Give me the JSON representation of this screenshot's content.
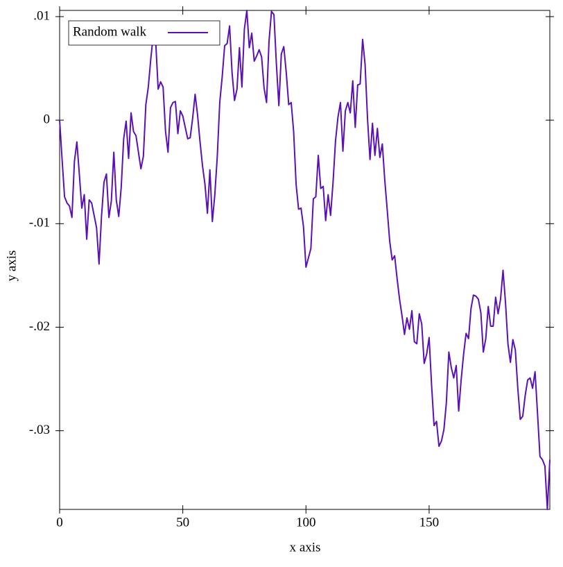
{
  "chart_data": {
    "type": "line",
    "x_label": "x axis",
    "y_label": "y axis",
    "xlim": [
      0,
      199
    ],
    "ylim": [
      -0.0376,
      0.0106
    ],
    "xticks": [
      0,
      50,
      100,
      150
    ],
    "yticks": [
      {
        "value": 0.01,
        "label": ".01"
      },
      0,
      {
        "value": -0.01,
        "label": "-.01"
      },
      {
        "value": -0.02,
        "label": "-.02"
      },
      {
        "value": -0.03,
        "label": "-.03"
      }
    ],
    "legend": "top-left",
    "x": [
      0,
      1,
      2,
      3,
      4,
      5,
      6,
      7,
      8,
      9,
      10,
      11,
      12,
      13,
      14,
      15,
      16,
      17,
      18,
      19,
      20,
      21,
      22,
      23,
      24,
      25,
      26,
      27,
      28,
      29,
      30,
      31,
      32,
      33,
      34,
      35,
      36,
      37,
      38,
      39,
      40,
      41,
      42,
      43,
      44,
      45,
      46,
      47,
      48,
      49,
      50,
      51,
      52,
      53,
      54,
      55,
      56,
      57,
      58,
      59,
      60,
      61,
      62,
      63,
      64,
      65,
      66,
      67,
      68,
      69,
      70,
      71,
      72,
      73,
      74,
      75,
      76,
      77,
      78,
      79,
      80,
      81,
      82,
      83,
      84,
      85,
      86,
      87,
      88,
      89,
      90,
      91,
      92,
      93,
      94,
      95,
      96,
      97,
      98,
      99,
      100,
      101,
      102,
      103,
      104,
      105,
      106,
      107,
      108,
      109,
      110,
      111,
      112,
      113,
      114,
      115,
      116,
      117,
      118,
      119,
      120,
      121,
      122,
      123,
      124,
      125,
      126,
      127,
      128,
      129,
      130,
      131,
      132,
      133,
      134,
      135,
      136,
      137,
      138,
      139,
      140,
      141,
      142,
      143,
      144,
      145,
      146,
      147,
      148,
      149,
      150,
      151,
      152,
      153,
      154,
      155,
      156,
      157,
      158,
      159,
      160,
      161,
      162,
      163,
      164,
      165,
      166,
      167,
      168,
      169,
      170,
      171,
      172,
      173,
      174,
      175,
      176,
      177,
      178,
      179,
      180,
      181,
      182,
      183,
      184,
      185,
      186,
      187,
      188,
      189,
      190,
      191,
      192,
      193,
      194,
      195,
      196,
      197,
      198,
      199
    ],
    "series": [
      {
        "name": "Random walk",
        "color": "#5a10b4",
        "values": [
          0,
          -0.0038,
          -0.0074,
          -0.008,
          -0.0083,
          -0.0094,
          -0.004,
          -0.0021,
          -0.0052,
          -0.0085,
          -0.0072,
          -0.0115,
          -0.0077,
          -0.008,
          -0.0092,
          -0.0104,
          -0.0139,
          -0.0093,
          -0.006,
          -0.0052,
          -0.0094,
          -0.0078,
          -0.0031,
          -0.0077,
          -0.0093,
          -0.0065,
          -0.0018,
          -0.0001,
          -0.0037,
          0.0007,
          -0.0011,
          -0.0015,
          -0.0031,
          -0.0047,
          -0.0035,
          0.0015,
          0.0032,
          0.0059,
          0.0082,
          0.0076,
          0.003,
          0.0037,
          0.0032,
          -0.0011,
          -0.0031,
          0.0012,
          0.0017,
          0.0018,
          -0.0013,
          0.0009,
          0.0004,
          -0.0007,
          -0.0018,
          -0.0017,
          0.0002,
          0.0025,
          0.0005,
          -0.0021,
          -0.0044,
          -0.0062,
          -0.009,
          -0.0048,
          -0.0098,
          -0.0072,
          -0.0035,
          0.0017,
          0.0042,
          0.0072,
          0.0074,
          0.0091,
          0.0046,
          0.0019,
          0.003,
          0.007,
          0.0032,
          0.0088,
          0.0106,
          0.007,
          0.0084,
          0.0057,
          0.0062,
          0.0068,
          0.0061,
          0.0031,
          0.0017,
          0.0076,
          0.0105,
          0.0102,
          0.0054,
          0.0014,
          0.0064,
          0.0071,
          0.0046,
          0.0015,
          0.0017,
          -0.0011,
          -0.0062,
          -0.0086,
          -0.0085,
          -0.0103,
          -0.0142,
          -0.0133,
          -0.0124,
          -0.0076,
          -0.0074,
          -0.0034,
          -0.0066,
          -0.0064,
          -0.0097,
          -0.0072,
          -0.0092,
          -0.006,
          -0.002,
          0.0003,
          0.0017,
          -0.003,
          0.0009,
          0.0017,
          0.0007,
          0.0038,
          -0.0007,
          0.0034,
          0.0035,
          0.0078,
          0.0054,
          0.0001,
          -0.0038,
          -0.0003,
          -0.0034,
          -0.0008,
          -0.0036,
          -0.0023,
          -0.0058,
          -0.0087,
          -0.0117,
          -0.0135,
          -0.0131,
          -0.0153,
          -0.0173,
          -0.0189,
          -0.0207,
          -0.0191,
          -0.0202,
          -0.0184,
          -0.0214,
          -0.0216,
          -0.0187,
          -0.0197,
          -0.0235,
          -0.0226,
          -0.021,
          -0.0256,
          -0.0295,
          -0.0291,
          -0.0315,
          -0.031,
          -0.0299,
          -0.0273,
          -0.0224,
          -0.0239,
          -0.0249,
          -0.0237,
          -0.0281,
          -0.0251,
          -0.0226,
          -0.0206,
          -0.0211,
          -0.0182,
          -0.0169,
          -0.017,
          -0.0173,
          -0.0186,
          -0.0224,
          -0.0211,
          -0.018,
          -0.0199,
          -0.0199,
          -0.0171,
          -0.0187,
          -0.0173,
          -0.0145,
          -0.0176,
          -0.0216,
          -0.0234,
          -0.0212,
          -0.0222,
          -0.0259,
          -0.0289,
          -0.0286,
          -0.0266,
          -0.0251,
          -0.0249,
          -0.0259,
          -0.0243,
          -0.0283,
          -0.0325,
          -0.0328,
          -0.0334,
          -0.0376,
          -0.0328
        ]
      }
    ]
  }
}
